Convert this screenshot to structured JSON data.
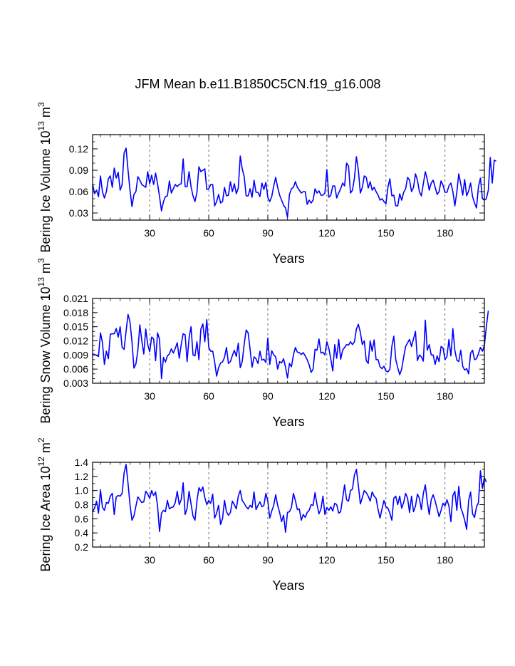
{
  "figure": {
    "title": "JFM Mean b.e11.B1850C5CN.f19_g16.008"
  },
  "chart_data": [
    {
      "type": "line",
      "ylabel_main": "Bering Ice Volume 10",
      "ylabel_sup1": "13",
      "ylabel_mid": " m",
      "ylabel_sup2": "3",
      "xlabel": "Years",
      "xlim": [
        1,
        200
      ],
      "ylim": [
        0.02,
        0.14
      ],
      "xticks": [
        30,
        60,
        90,
        120,
        150,
        180
      ],
      "xtick_labels": [
        "30",
        "60",
        "90",
        "120",
        "150",
        "180"
      ],
      "yticks": [
        0.03,
        0.06,
        0.09,
        0.12
      ],
      "ytick_labels": [
        "0.03",
        "0.06",
        "0.09",
        "0.12"
      ],
      "yminor_step": 0.01,
      "vlines": [
        30,
        60,
        90,
        120,
        150,
        180
      ],
      "color": "#0000ff",
      "values": [
        0.071,
        0.057,
        0.062,
        0.053,
        0.082,
        0.06,
        0.051,
        0.06,
        0.078,
        0.082,
        0.066,
        0.093,
        0.079,
        0.087,
        0.062,
        0.07,
        0.114,
        0.121,
        0.09,
        0.062,
        0.039,
        0.056,
        0.06,
        0.081,
        0.076,
        0.07,
        0.068,
        0.066,
        0.088,
        0.071,
        0.083,
        0.07,
        0.086,
        0.071,
        0.053,
        0.033,
        0.046,
        0.053,
        0.054,
        0.075,
        0.058,
        0.064,
        0.07,
        0.067,
        0.07,
        0.071,
        0.106,
        0.067,
        0.067,
        0.088,
        0.067,
        0.054,
        0.046,
        0.059,
        0.095,
        0.088,
        0.09,
        0.092,
        0.063,
        0.064,
        0.07,
        0.07,
        0.04,
        0.046,
        0.056,
        0.044,
        0.046,
        0.066,
        0.054,
        0.055,
        0.074,
        0.06,
        0.071,
        0.057,
        0.065,
        0.11,
        0.092,
        0.081,
        0.054,
        0.054,
        0.064,
        0.052,
        0.076,
        0.059,
        0.059,
        0.053,
        0.072,
        0.063,
        0.073,
        0.052,
        0.046,
        0.053,
        0.068,
        0.08,
        0.066,
        0.055,
        0.048,
        0.041,
        0.037,
        0.024,
        0.056,
        0.064,
        0.066,
        0.074,
        0.066,
        0.062,
        0.058,
        0.06,
        0.06,
        0.042,
        0.048,
        0.044,
        0.048,
        0.064,
        0.058,
        0.061,
        0.055,
        0.055,
        0.058,
        0.091,
        0.052,
        0.055,
        0.068,
        0.068,
        0.051,
        0.058,
        0.064,
        0.072,
        0.068,
        0.1,
        0.096,
        0.058,
        0.062,
        0.079,
        0.109,
        0.09,
        0.058,
        0.066,
        0.082,
        0.08,
        0.065,
        0.074,
        0.062,
        0.066,
        0.06,
        0.055,
        0.048,
        0.05,
        0.046,
        0.043,
        0.066,
        0.078,
        0.054,
        0.055,
        0.04,
        0.04,
        0.057,
        0.048,
        0.059,
        0.064,
        0.08,
        0.076,
        0.06,
        0.066,
        0.085,
        0.076,
        0.06,
        0.054,
        0.071,
        0.088,
        0.077,
        0.062,
        0.072,
        0.076,
        0.066,
        0.056,
        0.06,
        0.075,
        0.069,
        0.059,
        0.059,
        0.068,
        0.072,
        0.06,
        0.04,
        0.059,
        0.085,
        0.071,
        0.055,
        0.077,
        0.054,
        0.061,
        0.072,
        0.053,
        0.044,
        0.037,
        0.067,
        0.079,
        0.05,
        0.048,
        0.05,
        0.062,
        0.108,
        0.072,
        0.104,
        0.103
      ]
    },
    {
      "type": "line",
      "ylabel_main": "Bering Snow Volume 10",
      "ylabel_sup1": "13",
      "ylabel_mid": " m",
      "ylabel_sup2": "3",
      "xlabel": "Years",
      "xlim": [
        1,
        200
      ],
      "ylim": [
        0.003,
        0.021
      ],
      "xticks": [
        30,
        60,
        90,
        120,
        150,
        180
      ],
      "xtick_labels": [
        "30",
        "60",
        "90",
        "120",
        "150",
        "180"
      ],
      "yticks": [
        0.003,
        0.006,
        0.009,
        0.012,
        0.015,
        0.018,
        0.021
      ],
      "ytick_labels": [
        "0.003",
        "0.006",
        "0.009",
        "0.012",
        "0.015",
        "0.018",
        "0.021"
      ],
      "yminor_step": 0.001,
      "vlines": [
        30,
        60,
        90,
        120,
        150,
        180
      ],
      "color": "#0000ff",
      "values": [
        0.0092,
        0.0091,
        0.0089,
        0.0087,
        0.0137,
        0.0116,
        0.007,
        0.0098,
        0.0082,
        0.0134,
        0.0135,
        0.0135,
        0.0146,
        0.0128,
        0.015,
        0.0106,
        0.0102,
        0.014,
        0.0176,
        0.016,
        0.0118,
        0.0062,
        0.0071,
        0.01,
        0.0154,
        0.012,
        0.0092,
        0.0145,
        0.0112,
        0.0097,
        0.0128,
        0.0124,
        0.0078,
        0.0137,
        0.0123,
        0.004,
        0.0085,
        0.0075,
        0.0088,
        0.0092,
        0.0103,
        0.0094,
        0.0104,
        0.0116,
        0.0083,
        0.0112,
        0.0135,
        0.0133,
        0.0076,
        0.0126,
        0.015,
        0.009,
        0.0088,
        0.0118,
        0.008,
        0.0145,
        0.0156,
        0.0118,
        0.0165,
        0.0106,
        0.0098,
        0.0098,
        0.0075,
        0.0045,
        0.0063,
        0.0073,
        0.0075,
        0.0085,
        0.0106,
        0.0072,
        0.0076,
        0.0089,
        0.01,
        0.0087,
        0.0115,
        0.0063,
        0.0076,
        0.0113,
        0.0143,
        0.0137,
        0.0102,
        0.0064,
        0.0086,
        0.0082,
        0.0072,
        0.0098,
        0.0079,
        0.0081,
        0.0074,
        0.0126,
        0.007,
        0.0099,
        0.009,
        0.0086,
        0.006,
        0.0076,
        0.0073,
        0.0082,
        0.0064,
        0.0041,
        0.0072,
        0.0065,
        0.009,
        0.0106,
        0.0096,
        0.0095,
        0.0091,
        0.0095,
        0.0088,
        0.008,
        0.0069,
        0.0053,
        0.006,
        0.0102,
        0.01,
        0.0124,
        0.0094,
        0.0096,
        0.009,
        0.0118,
        0.0104,
        0.0081,
        0.0056,
        0.0112,
        0.0083,
        0.0123,
        0.0081,
        0.01,
        0.0106,
        0.0112,
        0.0111,
        0.0118,
        0.0112,
        0.0118,
        0.0145,
        0.0155,
        0.0138,
        0.0112,
        0.012,
        0.0078,
        0.0072,
        0.012,
        0.0098,
        0.0122,
        0.008,
        0.008,
        0.0065,
        0.0061,
        0.0066,
        0.0056,
        0.0054,
        0.006,
        0.0108,
        0.013,
        0.008,
        0.0063,
        0.0048,
        0.006,
        0.0085,
        0.0108,
        0.0116,
        0.0123,
        0.0108,
        0.0124,
        0.014,
        0.0078,
        0.009,
        0.0086,
        0.0077,
        0.0164,
        0.01,
        0.0112,
        0.009,
        0.009,
        0.007,
        0.0088,
        0.0076,
        0.0108,
        0.0105,
        0.008,
        0.0087,
        0.0123,
        0.0088,
        0.0146,
        0.01,
        0.0079,
        0.0076,
        0.01,
        0.0066,
        0.0058,
        0.0061,
        0.005,
        0.0094,
        0.01,
        0.008,
        0.0082,
        0.0093,
        0.0106,
        0.0098,
        0.011,
        0.015,
        0.0184
      ]
    },
    {
      "type": "line",
      "ylabel_main": "Bering Ice Area 10",
      "ylabel_sup1": "12",
      "ylabel_mid": " m",
      "ylabel_sup2": "2",
      "xlabel": "Years",
      "xlim": [
        1,
        200
      ],
      "ylim": [
        0.2,
        1.4
      ],
      "xticks": [
        30,
        60,
        90,
        120,
        150,
        180
      ],
      "xtick_labels": [
        "30",
        "60",
        "90",
        "120",
        "150",
        "180"
      ],
      "yticks": [
        0.2,
        0.4,
        0.6,
        0.8,
        1.0,
        1.2,
        1.4
      ],
      "ytick_labels": [
        "0.2",
        "0.4",
        "0.6",
        "0.8",
        "1.0",
        "1.2",
        "1.4"
      ],
      "yminor_step": 0.1,
      "vlines": [
        30,
        60,
        90,
        120,
        150,
        180
      ],
      "color": "#0000ff",
      "values": [
        0.7,
        0.75,
        0.85,
        0.68,
        1.01,
        0.76,
        0.72,
        0.83,
        0.82,
        0.92,
        0.96,
        0.66,
        0.91,
        0.93,
        0.92,
        0.96,
        1.25,
        1.37,
        1.1,
        0.8,
        0.58,
        0.64,
        0.78,
        0.91,
        0.87,
        0.83,
        0.84,
        0.99,
        0.95,
        0.89,
        1.0,
        0.93,
        0.98,
        0.78,
        0.42,
        0.68,
        0.72,
        0.7,
        0.86,
        0.74,
        0.76,
        0.77,
        0.83,
        0.99,
        0.8,
        0.87,
        1.11,
        0.66,
        0.75,
        0.99,
        0.81,
        0.64,
        0.58,
        0.85,
        1.04,
        0.99,
        1.05,
        0.9,
        0.8,
        0.86,
        0.82,
        0.95,
        0.61,
        0.68,
        0.79,
        0.52,
        0.6,
        0.86,
        0.7,
        0.65,
        0.69,
        0.85,
        0.8,
        0.74,
        0.92,
        1.0,
        0.86,
        0.82,
        0.77,
        0.74,
        0.79,
        0.76,
        0.98,
        0.73,
        0.79,
        0.84,
        0.77,
        0.79,
        0.96,
        0.85,
        0.61,
        0.71,
        0.79,
        0.94,
        0.79,
        0.69,
        0.56,
        0.65,
        0.41,
        0.69,
        0.7,
        0.76,
        0.96,
        0.86,
        0.73,
        0.74,
        0.58,
        0.66,
        0.62,
        0.69,
        0.72,
        0.8,
        0.79,
        0.97,
        0.8,
        0.67,
        0.74,
        0.92,
        0.66,
        0.76,
        0.72,
        0.77,
        0.71,
        0.82,
        0.8,
        0.68,
        0.7,
        0.89,
        1.08,
        0.87,
        0.85,
        1.0,
        1.02,
        1.22,
        1.3,
        1.07,
        0.81,
        0.9,
        1.0,
        0.97,
        0.92,
        0.85,
        0.98,
        0.92,
        0.89,
        0.73,
        0.61,
        0.74,
        0.86,
        0.77,
        0.75,
        0.68,
        0.58,
        0.89,
        0.92,
        0.8,
        0.92,
        0.75,
        0.83,
        0.96,
        0.89,
        0.69,
        0.92,
        0.7,
        0.78,
        0.95,
        0.89,
        0.73,
        0.96,
        1.08,
        0.84,
        0.66,
        0.87,
        0.94,
        0.85,
        0.74,
        0.63,
        0.72,
        0.82,
        0.78,
        0.87,
        0.78,
        0.56,
        0.93,
        0.99,
        0.72,
        1.06,
        0.76,
        0.68,
        0.58,
        0.45,
        0.86,
        0.98,
        0.67,
        0.62,
        0.77,
        0.83,
        1.28,
        1.03,
        1.18,
        1.12
      ]
    }
  ]
}
